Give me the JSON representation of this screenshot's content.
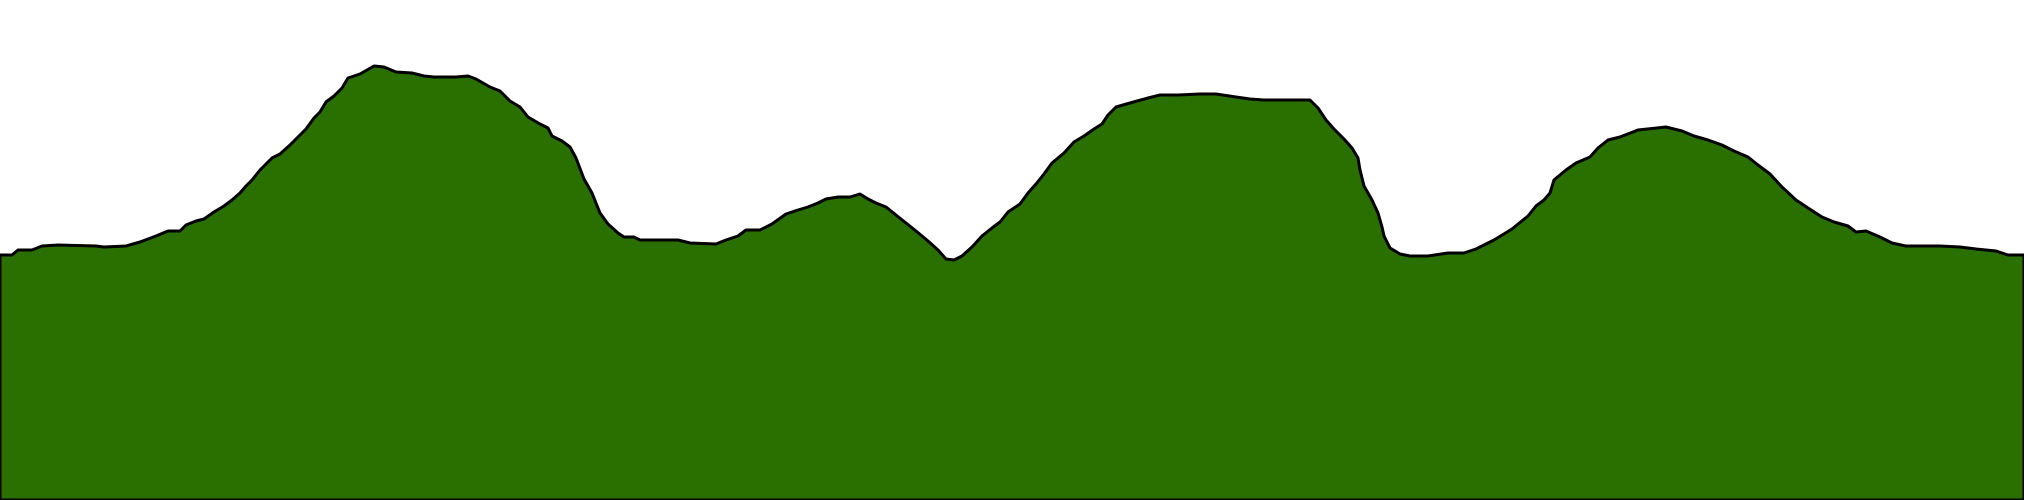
{
  "scene": {
    "background_color": "#ffffff",
    "terrain": {
      "fill_color": "#2a7000",
      "outline_color": "#000000",
      "description_icon": "hills-terrain-icon"
    }
  }
}
